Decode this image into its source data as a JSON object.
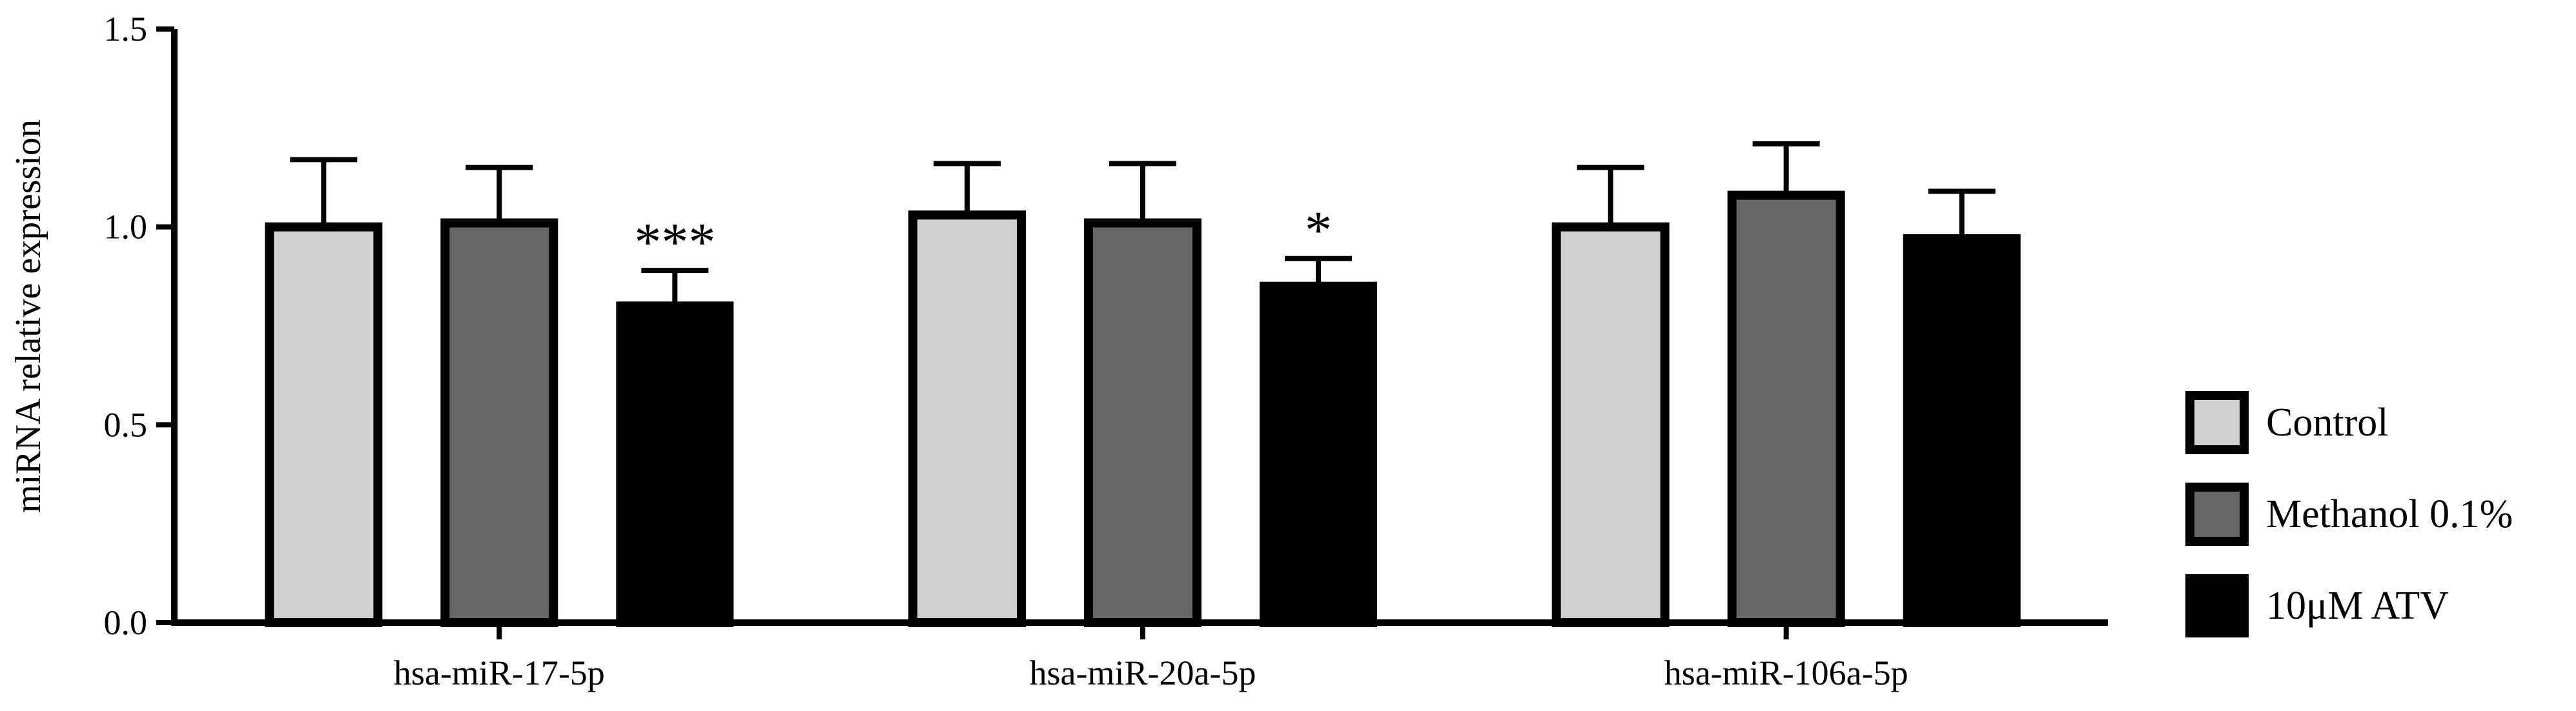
{
  "chart_data": {
    "type": "bar",
    "title": "",
    "xlabel": "",
    "ylabel": "miRNA relative expression",
    "ylim": [
      0,
      1.5
    ],
    "yticks": [
      "0.0",
      "0.5",
      "1.0",
      "1.5"
    ],
    "categories": [
      "hsa-miR-17-5p",
      "hsa-miR-20a-5p",
      "hsa-miR-106a-5p"
    ],
    "series": [
      {
        "name": "Control",
        "color": "#d0d0d0",
        "values": [
          1.0,
          1.03,
          1.0
        ],
        "errors": [
          0.17,
          0.13,
          0.15
        ]
      },
      {
        "name": "Methanol 0.1%",
        "color": "#666666",
        "values": [
          1.01,
          1.01,
          1.08
        ],
        "errors": [
          0.14,
          0.15,
          0.13
        ]
      },
      {
        "name": "10μM ATV",
        "color": "#000000",
        "values": [
          0.8,
          0.85,
          0.97
        ],
        "errors": [
          0.09,
          0.07,
          0.12
        ]
      }
    ],
    "significance": [
      {
        "category_index": 0,
        "series_index": 2,
        "label": "***"
      },
      {
        "category_index": 1,
        "series_index": 2,
        "label": "*"
      }
    ],
    "error_bars": "one-sided (upper)",
    "legend": {
      "placement": "right"
    },
    "grid": false
  }
}
